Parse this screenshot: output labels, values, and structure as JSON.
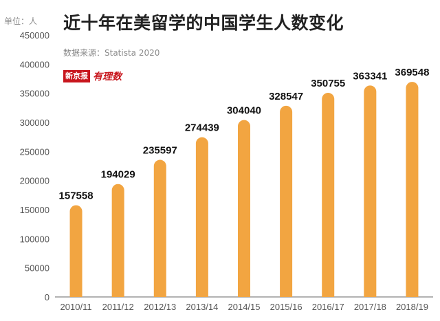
{
  "header": {
    "unit": "单位：人",
    "title": "近十年在美留学的中国学生人数变化",
    "source": "数据来源：Statista 2020",
    "logo_primary": "新京报",
    "logo_secondary": "有理数"
  },
  "colors": {
    "bar": "#F2A541",
    "axis_text": "#555555",
    "label_text": "#111111"
  },
  "chart_data": {
    "type": "bar",
    "categories": [
      "2010/11",
      "2011/12",
      "2012/13",
      "2013/14",
      "2014/15",
      "2015/16",
      "2016/17",
      "2017/18",
      "2018/19"
    ],
    "values": [
      157558,
      194029,
      235597,
      274439,
      304040,
      328547,
      350755,
      363341,
      369548
    ],
    "title": "近十年在美留学的中国学生人数变化",
    "ylabel": "单位：人",
    "ylim": [
      0,
      450000
    ],
    "yticks": [
      0,
      50000,
      100000,
      150000,
      200000,
      250000,
      300000,
      350000,
      400000,
      450000
    ],
    "grid": false,
    "data_labels": true
  }
}
